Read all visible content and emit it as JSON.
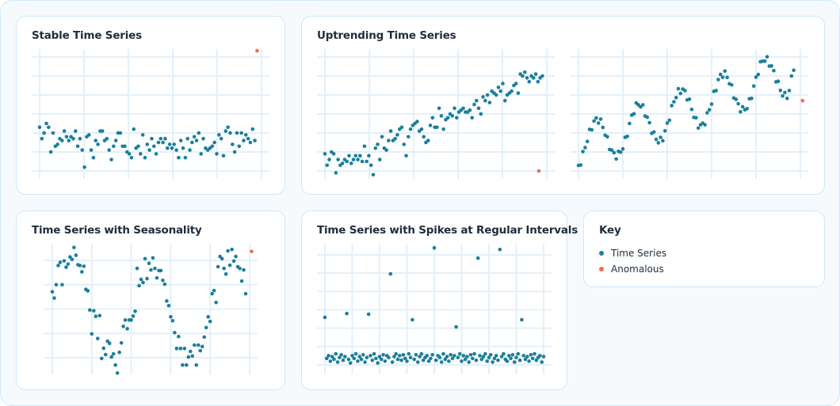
{
  "colors": {
    "series": "#1a7f9c",
    "anomaly": "#f26b50",
    "grid": "#e3f0fa"
  },
  "key": {
    "title": "Key",
    "items": [
      {
        "label": "Time Series",
        "color": "#1a7f9c"
      },
      {
        "label": "Anomalous",
        "color": "#f26b50"
      }
    ]
  },
  "chart_data": [
    {
      "type": "scatter",
      "title": "Stable Time Series",
      "grid": true,
      "values": [
        2.3,
        1.7,
        2.0,
        2.5,
        2.3,
        1.0,
        2.0,
        1.3,
        1.4,
        1.7,
        1.6,
        2.1,
        1.8,
        1.6,
        1.8,
        1.7,
        2.1,
        1.3,
        1.7,
        1.1,
        0.2,
        1.8,
        1.9,
        1.1,
        0.7,
        1.6,
        1.4,
        2.1,
        2.1,
        1.6,
        1.7,
        1.1,
        0.6,
        1.3,
        1.6,
        2.0,
        2.0,
        1.3,
        1.3,
        1.0,
        0.9,
        0.7,
        2.2,
        1.2,
        1.3,
        0.9,
        1.9,
        0.7,
        1.4,
        1.1,
        1.7,
        1.3,
        0.9,
        1.5,
        1.7,
        1.5,
        1.7,
        1.2,
        1.4,
        1.2,
        1.4,
        1.1,
        0.7,
        1.6,
        1.2,
        0.7,
        1.7,
        1.1,
        1.5,
        1.8,
        1.6,
        2.0,
        0.9,
        1.7,
        1.2,
        1.1,
        1.2,
        1.3,
        1.5,
        0.9,
        1.9,
        1.7,
        0.8,
        2.1,
        2.3,
        2.0,
        1.4,
        1.0,
        2.0,
        1.3,
        2.0,
        1.6,
        1.9,
        1.7,
        1.5,
        2.2,
        1.6
      ],
      "anomalies": [
        {
          "x": 98,
          "y": 6.33
        }
      ]
    },
    {
      "type": "scatter",
      "title": "Uptrending Time Series",
      "grid": true,
      "values": [
        0.9,
        0.3,
        0.6,
        1.0,
        0.9,
        -0.1,
        0.6,
        0.3,
        0.4,
        0.6,
        0.5,
        0.8,
        0.4,
        0.6,
        0.8,
        0.6,
        0.8,
        0.5,
        1.3,
        0.5,
        0.8,
        0.3,
        -0.2,
        1.2,
        1.4,
        0.6,
        1.8,
        1.2,
        1.1,
        1.6,
        2.1,
        1.6,
        1.7,
        1.9,
        2.2,
        2.3,
        1.4,
        0.8,
        1.8,
        2.2,
        2.4,
        2.5,
        2.6,
        2.1,
        2.2,
        1.8,
        1.5,
        1.6,
        2.4,
        2.8,
        2.3,
        2.3,
        3.3,
        2.9,
        2.2,
        2.7,
        2.8,
        3.0,
        2.9,
        3.3,
        2.8,
        3.1,
        3.2,
        3.3,
        3.1,
        3.1,
        3.2,
        2.8,
        3.5,
        3.7,
        3.3,
        3.0,
        3.9,
        3.7,
        4.0,
        3.6,
        4.2,
        4.1,
        4.0,
        4.4,
        4.2,
        4.6,
        3.7,
        4.0,
        4.1,
        4.2,
        4.5,
        4.6,
        4.1,
        5.1,
        5.0,
        5.2,
        4.9,
        4.7,
        5.0,
        4.9,
        5.1,
        4.7,
        4.9,
        5.0
      ],
      "anomalies": [
        {
          "x": 96.4,
          "y": 0.0
        }
      ]
    },
    {
      "type": "scatter",
      "title": "",
      "grid": true,
      "values": [
        0.29,
        0.31,
        1.02,
        1.23,
        1.55,
        2.19,
        2.16,
        2.63,
        2.79,
        2.52,
        2.73,
        2.29,
        1.88,
        1.8,
        1.13,
        1.1,
        0.96,
        0.63,
        1.03,
        0.99,
        1.16,
        1.77,
        1.82,
        2.5,
        2.94,
        3.01,
        3.58,
        3.48,
        3.37,
        3.48,
        2.89,
        2.83,
        2.54,
        1.98,
        2.05,
        1.66,
        1.48,
        1.77,
        1.59,
        2.11,
        2.52,
        2.67,
        3.44,
        3.64,
        3.86,
        4.33,
        4.08,
        4.31,
        4.23,
        3.74,
        3.78,
        3.24,
        2.82,
        2.8,
        2.26,
        2.43,
        2.52,
        2.43,
        3.06,
        3.22,
        3.52,
        4.19,
        4.23,
        4.81,
        5.08,
        4.93,
        5.26,
        4.92,
        4.59,
        4.53,
        3.84,
        3.77,
        3.54,
        3.11,
        3.38,
        3.22,
        3.28,
        3.8,
        3.82,
        4.47,
        4.94,
        5.08,
        5.75,
        5.78,
        5.78,
        6.01,
        5.52,
        5.53,
        5.28,
        4.69,
        4.72,
        4.24,
        3.95,
        4.13,
        3.82,
        4.23,
        5.0,
        5.3
      ],
      "anomalies": [
        {
          "x": 101,
          "y": 3.7
        }
      ]
    },
    {
      "type": "scatter",
      "title": "Time Series with Seasonality",
      "grid": true,
      "values": [
        2.71,
        2.45,
        3.0,
        3.79,
        3.92,
        3.0,
        3.98,
        3.72,
        3.85,
        4.14,
        4.04,
        4.53,
        4.21,
        3.82,
        3.79,
        3.53,
        3.76,
        2.81,
        2.75,
        1.96,
        0.98,
        1.93,
        1.7,
        0.79,
        1.73,
        -0.03,
        0.39,
        0.13,
        0.68,
        0.59,
        0.03,
        0.16,
        -0.3,
        -0.63,
        0.22,
        0.61,
        1.29,
        1.55,
        1.19,
        1.55,
        1.55,
        1.71,
        1.91,
        3.67,
        2.96,
        3.22,
        3.09,
        4.07,
        3.25,
        3.88,
        3.61,
        4.1,
        3.67,
        3.28,
        3.58,
        3.58,
        3.18,
        3.02,
        2.33,
        2.14,
        1.68,
        1.52,
        1.03,
        0.38,
        0.87,
        0.38,
        -0.3,
        0.38,
        -0.3,
        0.03,
        0.26,
        0.07,
        0.52,
        -0.3,
        0.52,
        0.29,
        0.46,
        0.85,
        1.24,
        1.68,
        1.49,
        2.63,
        2.76,
        2.27,
        3.74,
        4.16,
        4.07,
        3.67,
        3.44,
        4.39,
        3.8,
        4.45,
        3.97,
        4.16,
        3.74,
        3.67,
        3.15,
        3.61,
        2.63
      ],
      "anomalies": [
        {
          "x": 101,
          "y": 4.37
        }
      ]
    },
    {
      "type": "scatter",
      "title": "Time Series with Spikes at Regular Intervals",
      "grid": true,
      "values": [
        2.59,
        0.35,
        0.5,
        0.2,
        0.45,
        0.3,
        0.6,
        0.15,
        0.4,
        0.55,
        0.25,
        0.45,
        2.8,
        0.3,
        0.1,
        0.5,
        0.35,
        0.6,
        0.2,
        0.45,
        0.3,
        0.55,
        0.15,
        0.4,
        2.76,
        0.5,
        0.25,
        0.6,
        0.35,
        0.1,
        0.45,
        0.3,
        0.55,
        0.2,
        0.5,
        0.4,
        4.96,
        0.15,
        0.45,
        0.6,
        0.3,
        0.5,
        0.25,
        0.55,
        0.35,
        0.2,
        0.6,
        0.4,
        2.46,
        0.3,
        0.55,
        0.15,
        0.45,
        0.6,
        0.25,
        0.4,
        0.5,
        0.2,
        0.35,
        0.55,
        6.38,
        0.25,
        0.5,
        0.4,
        0.15,
        0.6,
        0.3,
        0.45,
        0.2,
        0.55,
        0.35,
        0.5,
        2.07,
        0.4,
        0.6,
        0.2,
        0.5,
        0.3,
        0.45,
        0.15,
        0.55,
        0.35,
        0.6,
        0.25,
        5.82,
        0.5,
        0.3,
        0.45,
        0.6,
        0.2,
        0.4,
        0.55,
        0.15,
        0.35,
        0.5,
        0.25,
        6.29,
        0.45,
        0.6,
        0.3,
        0.2,
        0.5,
        0.35,
        0.55,
        0.15,
        0.4,
        0.6,
        0.25,
        2.46,
        0.5,
        0.3,
        0.45,
        0.2,
        0.55,
        0.35,
        0.6,
        0.25,
        0.4,
        0.5,
        0.15,
        0.45
      ],
      "anomalies": []
    }
  ]
}
